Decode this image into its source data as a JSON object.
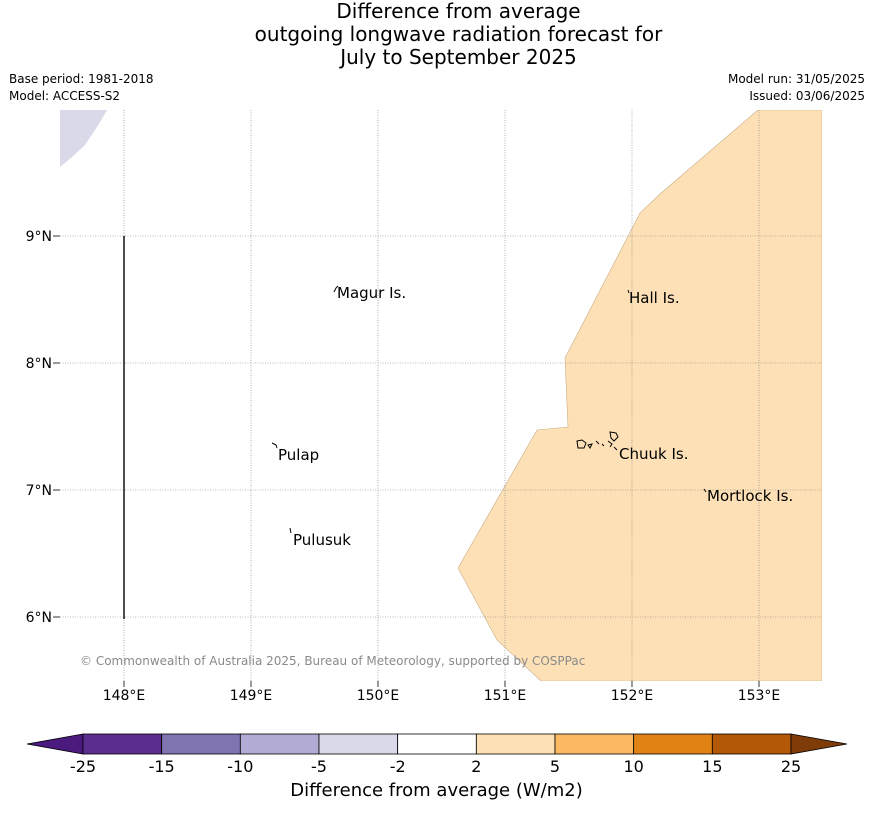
{
  "title": {
    "line1": "Difference from average",
    "line2": "outgoing longwave radiation forecast for",
    "line3": "July to September 2025"
  },
  "meta": {
    "base_period": "Base period: 1981-2018",
    "model": "Model: ACCESS-S2",
    "model_run": "Model run: 31/05/2025",
    "issued": "Issued: 03/06/2025"
  },
  "map": {
    "lon_ticks": [
      "148°E",
      "149°E",
      "150°E",
      "151°E",
      "152°E",
      "153°E"
    ],
    "lat_ticks": [
      "9°N",
      "8°N",
      "7°N",
      "6°N"
    ],
    "places": [
      {
        "name": "Magur Is."
      },
      {
        "name": "Hall Is."
      },
      {
        "name": "Pulap"
      },
      {
        "name": "Chuuk Is."
      },
      {
        "name": "Mortlock Is."
      },
      {
        "name": "Pulusuk"
      }
    ],
    "copyright": "© Commonwealth of Australia 2025, Bureau of Meteorology, supported by COSPPac",
    "regions": [
      {
        "category": "-5 to -2",
        "color": "#d9d9ea"
      },
      {
        "category": "2 to 5",
        "color": "#fde0b6"
      }
    ]
  },
  "colorbar": {
    "label": "Difference from average (W/m2)",
    "tick_labels": [
      "-25",
      "-15",
      "-10",
      "-5",
      "-2",
      "2",
      "5",
      "10",
      "15",
      "25"
    ],
    "colors": [
      "#4b1a7e",
      "#5a2d8e",
      "#8074b0",
      "#b2abd3",
      "#d9d9ea",
      "#ffffff",
      "#fde0b6",
      "#fdb863",
      "#e08214",
      "#b35806",
      "#7f3b08"
    ]
  }
}
